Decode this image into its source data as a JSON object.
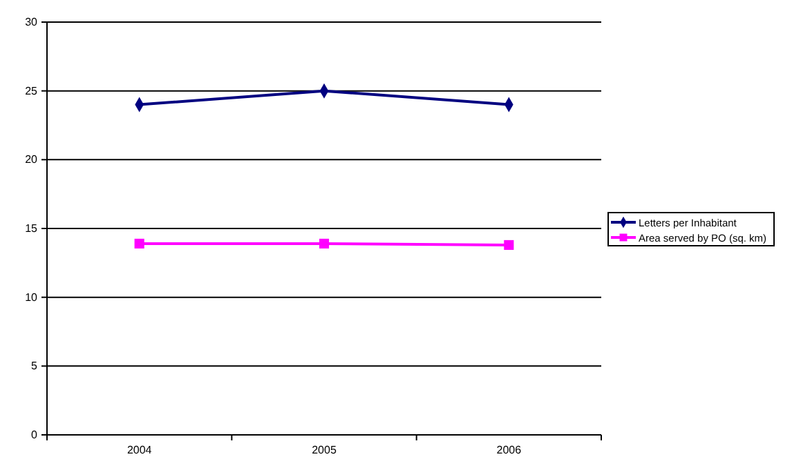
{
  "chart_data": {
    "type": "line",
    "categories": [
      "2004",
      "2005",
      "2006"
    ],
    "series": [
      {
        "name": "Letters per Inhabitant",
        "color": "#000080",
        "marker": "diamond",
        "values": [
          24,
          25,
          24
        ]
      },
      {
        "name": "Area served by PO (sq. km)",
        "color": "#ff00ff",
        "marker": "square",
        "values": [
          13.9,
          13.9,
          13.8
        ]
      }
    ],
    "ylim": [
      0,
      30
    ],
    "yticks": [
      0,
      5,
      10,
      15,
      20,
      25,
      30
    ],
    "grid": "y",
    "legend": "right"
  }
}
